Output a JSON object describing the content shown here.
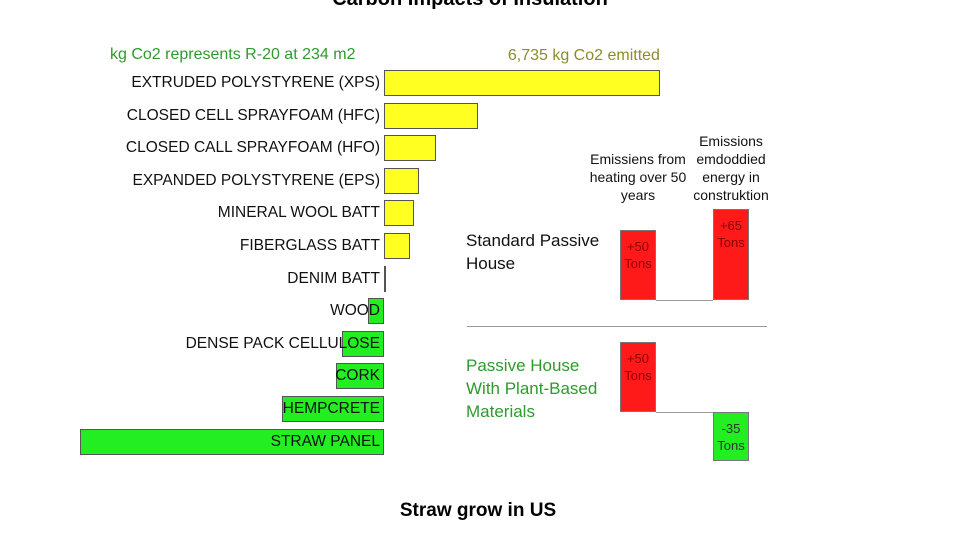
{
  "chart_data": [
    {
      "type": "hbar",
      "title": "Carbon Impacts of Insulation",
      "subtitle": "kg Co2 represents R-20 at 234 m2",
      "caption": "Straw grow in US",
      "categories": [
        "EXTRUDED POLYSTYRENE (XPS)",
        "CLOSED CELL SPRAYFOAM (HFC)",
        "CLOSED CALL SPRAYFOAM (HFO)",
        "EXPANDED POLYSTYRENE (EPS)",
        "MINERAL WOOL BATT",
        "FIBERGLASS BATT",
        "DENIM BATT",
        "WOOD",
        "DENSE PACK CELLULOSE",
        "CORK",
        "HEMPCRETE",
        "STRAW PANEL"
      ],
      "values": [
        6735,
        2290,
        1270,
        850,
        730,
        630,
        50,
        -390,
        -1025,
        -1170,
        -2490,
        -7420
      ],
      "value_labels": [
        "6,735 kg Co2 emitted",
        null,
        null,
        null,
        null,
        null,
        null,
        null,
        null,
        null,
        null,
        null
      ],
      "value_label_color": "#8c8c2a",
      "subtitle_color": "#2e9a2e",
      "colors": [
        "#ffff22",
        "#ffff22",
        "#ffff22",
        "#ffff22",
        "#ffff22",
        "#ffff22",
        "#22ee22",
        "#22ee22",
        "#22ee22",
        "#22ee22",
        "#22ee22",
        "#22ee22"
      ]
    },
    {
      "type": "column_pair",
      "categories": [
        "Emissiens from heating over 50 years",
        "Emissions emdoddied energy in construktion"
      ],
      "series": [
        {
          "name": "Standard Passive House",
          "name_color": "#111111",
          "values": [
            50,
            65
          ],
          "value_labels": [
            "+50 Tons",
            "+65 Tons"
          ],
          "colors": [
            "#ff1a1a",
            "#ff1a1a"
          ]
        },
        {
          "name": "Passive House With Plant-Based Materials",
          "name_color": "#2e9a2e",
          "values": [
            50,
            -35
          ],
          "value_labels": [
            "+50 Tons",
            "-35 Tons"
          ],
          "colors": [
            "#ff1a1a",
            "#22ee22"
          ]
        }
      ]
    }
  ]
}
